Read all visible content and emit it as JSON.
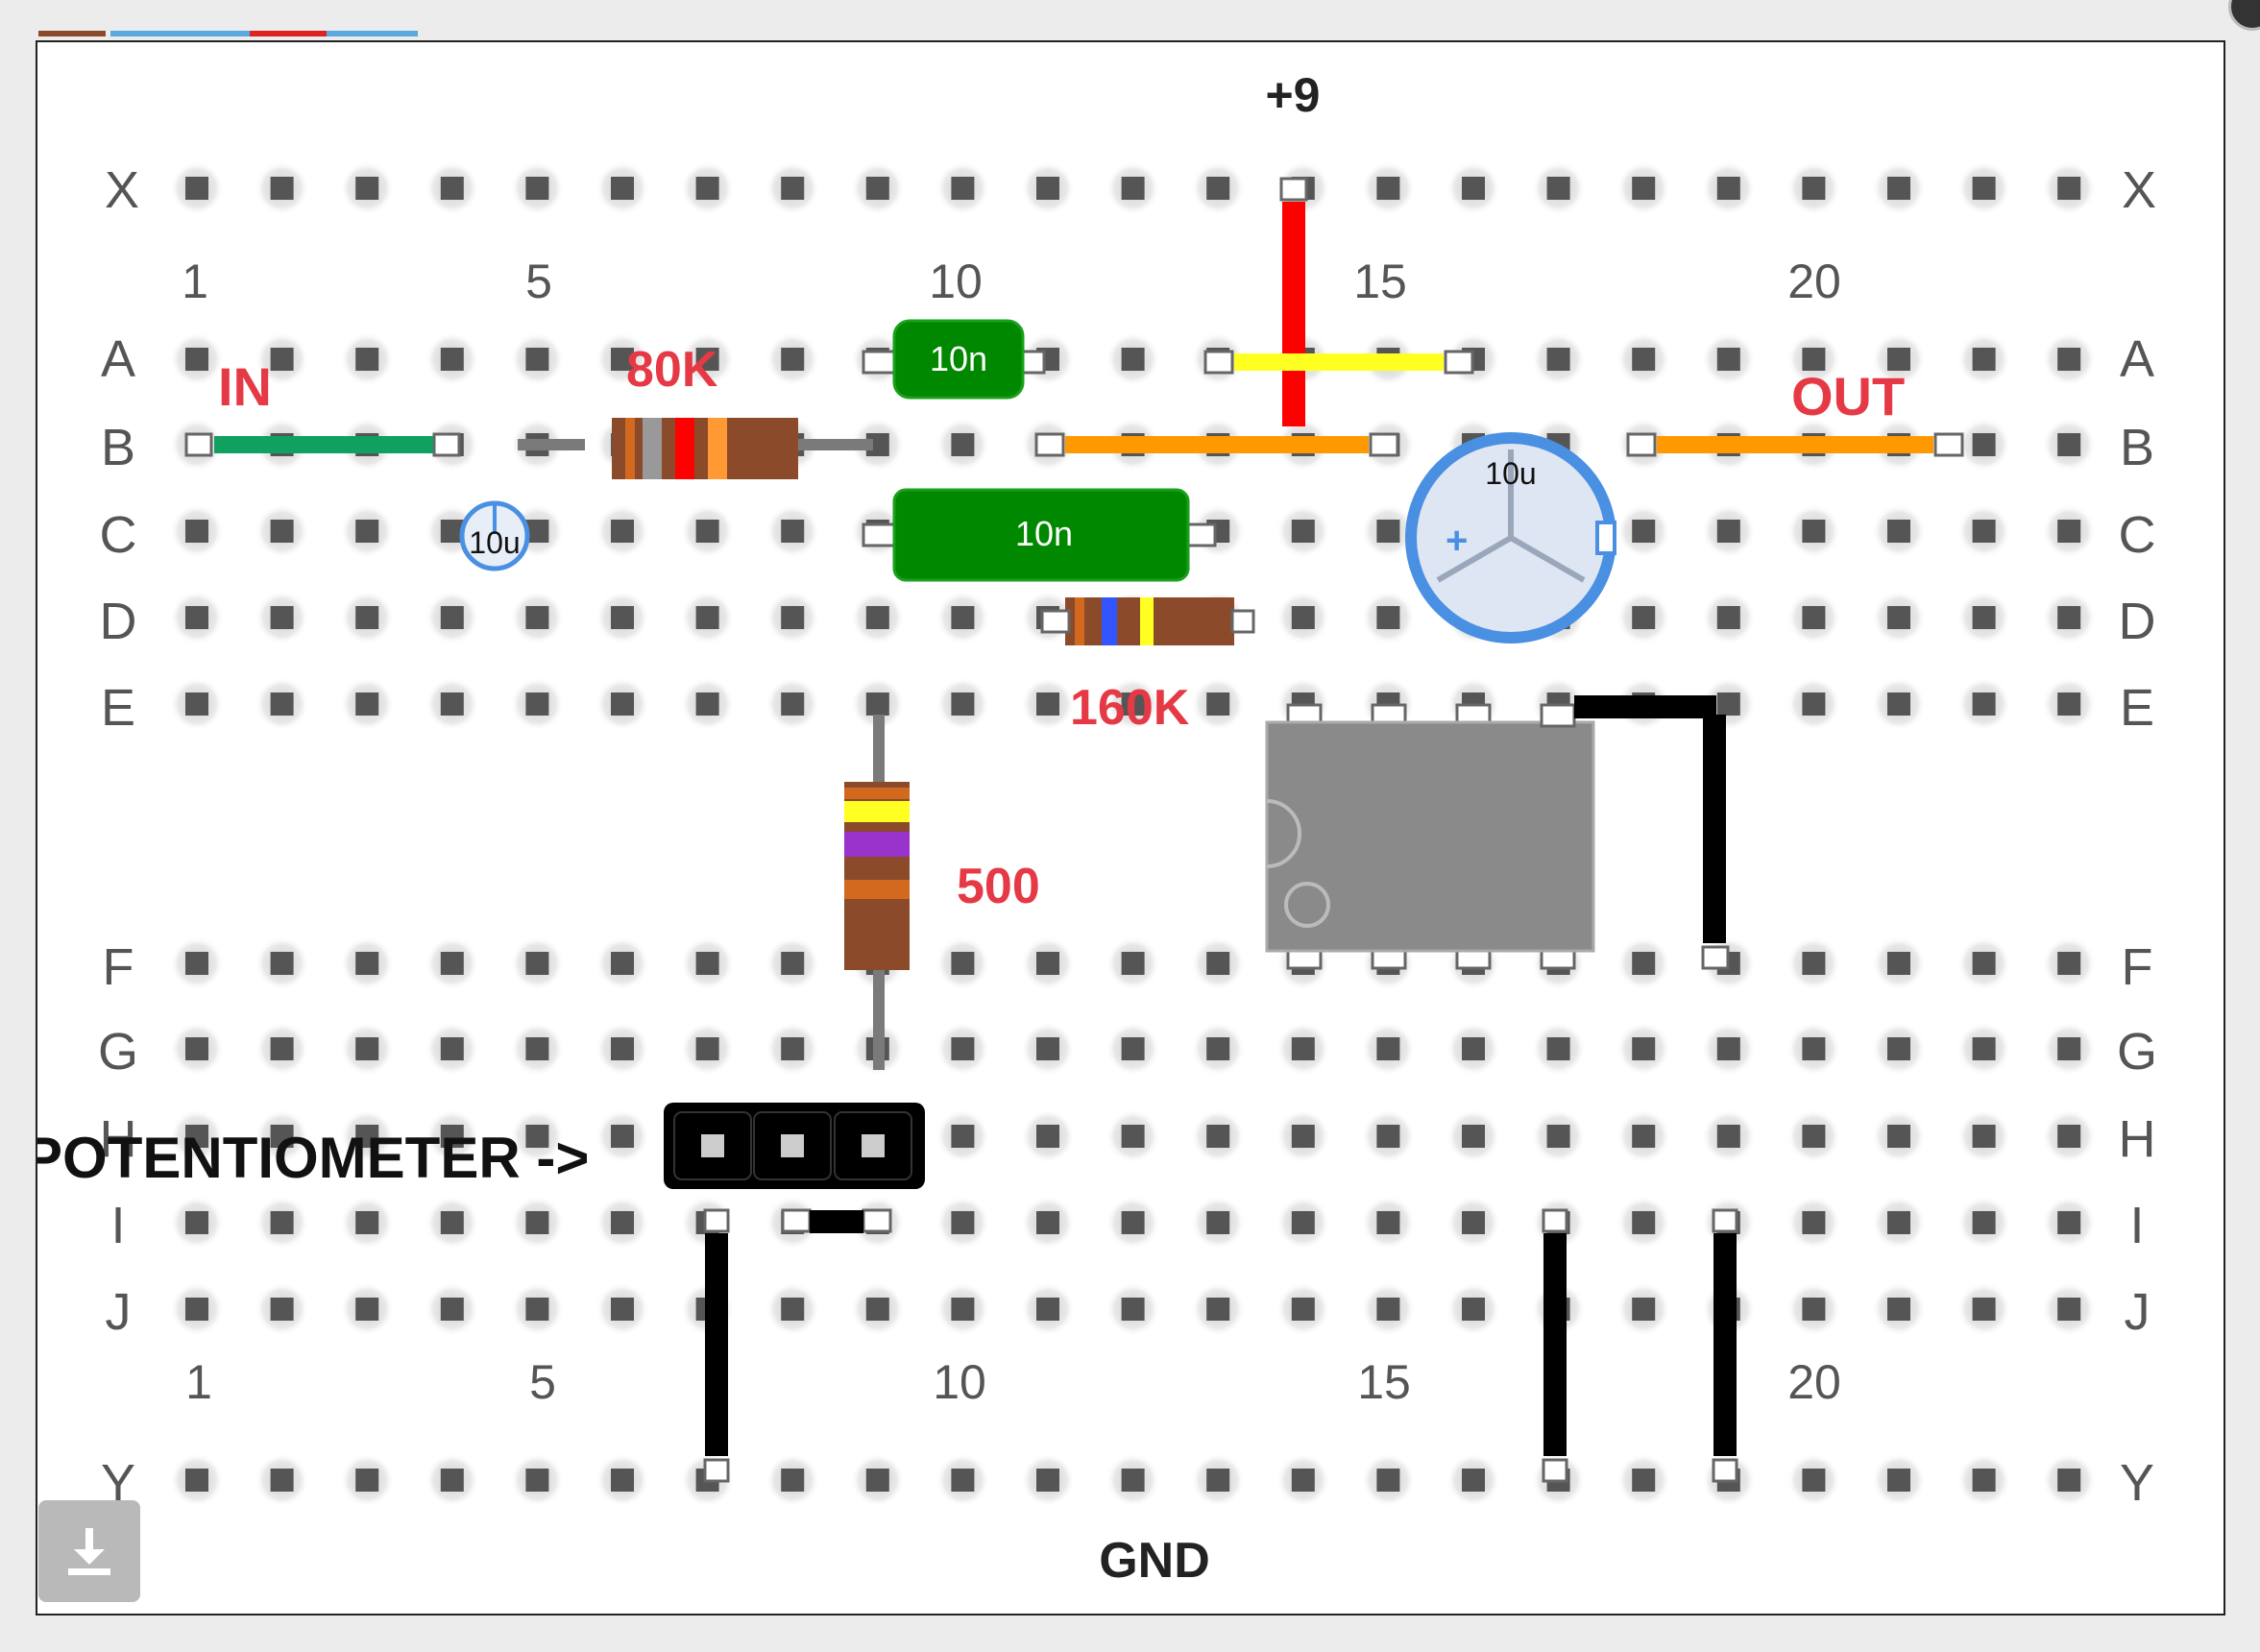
{
  "board": {
    "title_top": "+9",
    "title_bottom": "GND",
    "row_labels": [
      "X",
      "A",
      "B",
      "C",
      "D",
      "E",
      "F",
      "G",
      "H",
      "I",
      "J",
      "Y"
    ],
    "column_numbers": [
      "1",
      "5",
      "10",
      "15",
      "20"
    ],
    "annotations": {
      "in": "IN",
      "out": "OUT",
      "r80k": "80K",
      "r160k": "160K",
      "r500": "500",
      "potentiometer": "POTENTIOMETER ->"
    },
    "components": {
      "cap_film_small": "10n",
      "cap_film_large": "10n",
      "cap_elec_small": "10u",
      "cap_elec_large": "10u"
    },
    "colors": {
      "label_red": "#e63946",
      "wire_green": "#10a060",
      "wire_orange": "#ff9900",
      "wire_red": "#ff0000",
      "wire_yellow": "#ffff22",
      "wire_black": "#000000",
      "film_cap_green": "#008800",
      "elec_cap_blue": "#4a90e2",
      "ic_gray": "#8a8a8a",
      "resistor_brown": "#8b4a2a"
    }
  },
  "toolbar": {
    "download_icon": "download-icon"
  }
}
